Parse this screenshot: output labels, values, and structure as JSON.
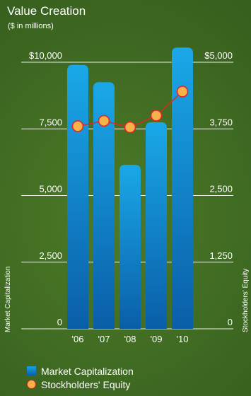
{
  "chart_data": {
    "type": "bar",
    "title": "Value Creation",
    "subtitle": "($ in millions)",
    "categories": [
      "'06",
      "'07",
      "'08",
      "'09",
      "'10"
    ],
    "series": [
      {
        "name": "Market Capitalization",
        "type": "bar",
        "axis": "left",
        "values": [
          9900,
          9250,
          6150,
          7750,
          10550
        ],
        "color": "#1496db"
      },
      {
        "name": "Stockholders' Equity",
        "type": "line",
        "axis": "right",
        "values": [
          3800,
          3900,
          3780,
          4000,
          4450
        ],
        "color": "#f9b24a",
        "line_color": "#e0262a"
      }
    ],
    "left_axis": {
      "label": "Market Capitalization",
      "ylim": [
        0,
        10000
      ],
      "ticks": [
        0,
        2500,
        5000,
        7500,
        10000
      ],
      "tick_labels": [
        "0",
        "2,500",
        "5,000",
        "7,500",
        "$10,000"
      ]
    },
    "right_axis": {
      "label": "Stockholders' Equity",
      "ylim": [
        0,
        5000
      ],
      "ticks": [
        0,
        1250,
        2500,
        3750,
        5000
      ],
      "tick_labels": [
        "0",
        "1,250",
        "2,500",
        "3,750",
        "$5,000"
      ]
    },
    "grid": true,
    "legend_position": "bottom-left"
  },
  "legend": {
    "items": [
      {
        "label": "Market Capitalization",
        "icon": "bar-swatch"
      },
      {
        "label": "Stockholders' Equity",
        "icon": "dot-swatch"
      }
    ]
  }
}
